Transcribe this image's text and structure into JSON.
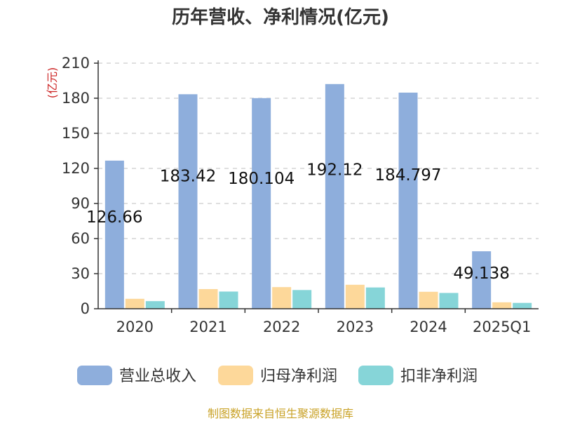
{
  "chart_data": {
    "type": "bar",
    "title": "历年营收、净利情况(亿元)",
    "unit_label": "(亿元)",
    "categories": [
      "2020",
      "2021",
      "2022",
      "2023",
      "2024",
      "2025Q1"
    ],
    "ylim": [
      0,
      210
    ],
    "yticks": [
      "0",
      "30",
      "60",
      "90",
      "120",
      "150",
      "180",
      "210"
    ],
    "grid": true,
    "legend_position": "bottom",
    "series": [
      {
        "name": "营业总收入",
        "values": [
          126.66,
          183.42,
          180.104,
          192.12,
          184.797,
          49.138
        ],
        "labels": [
          "126.66",
          "183.42",
          "180.104",
          "192.12",
          "184.797",
          "49.138"
        ],
        "color": "#8eaedc"
      },
      {
        "name": "归母净利润",
        "values": [
          8.5,
          16.8,
          18.5,
          20.5,
          14.5,
          5.5
        ],
        "color": "#fdd89a"
      },
      {
        "name": "扣非净利润",
        "values": [
          6.5,
          14.7,
          16.0,
          18.2,
          13.5,
          5.0
        ],
        "color": "#86d5d8"
      }
    ],
    "source": "制图数据来自恒生聚源数据库"
  }
}
